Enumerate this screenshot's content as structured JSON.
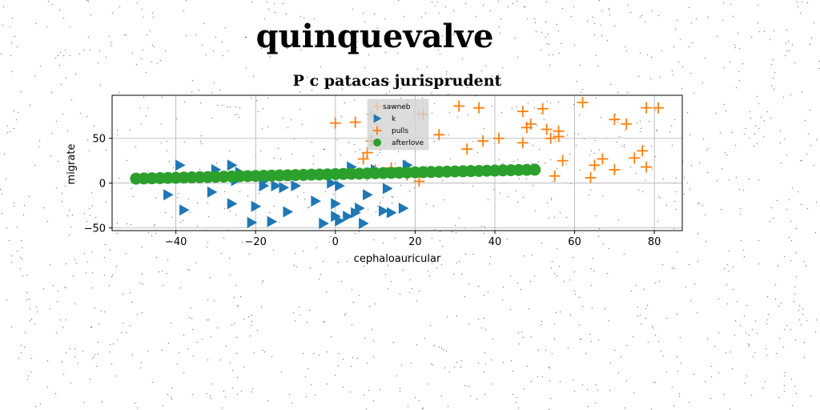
{
  "page": {
    "suptitle": "quinquevalve"
  },
  "chart_data": {
    "type": "scatter",
    "title": "P c patacas jurisprudent",
    "xlabel": "cephaloauricular",
    "ylabel": "migrate",
    "xlim": [
      -56,
      87
    ],
    "ylim": [
      -53,
      98
    ],
    "xticks": [
      -40,
      -20,
      0,
      20,
      40,
      60,
      80
    ],
    "yticks": [
      -50,
      0,
      50
    ],
    "grid": true,
    "legend_position": "top-center",
    "legend": [
      "sawneb",
      "k",
      "pulls",
      "afterlove"
    ],
    "series": [
      {
        "name": "sawneb",
        "marker": "plus",
        "color": "#e8c4a8",
        "points": [
          [
            9,
            77
          ],
          [
            21,
            77
          ]
        ]
      },
      {
        "name": "k",
        "marker": "triangle-right",
        "color": "#1f77b4",
        "points": [
          [
            -39,
            20
          ],
          [
            -30,
            15
          ],
          [
            -26,
            20
          ],
          [
            -24,
            12
          ],
          [
            -25,
            3
          ],
          [
            -18,
            5
          ],
          [
            -17,
            5
          ],
          [
            -42,
            -13
          ],
          [
            -38,
            -30
          ],
          [
            -31,
            -10
          ],
          [
            -26,
            -23
          ],
          [
            -20,
            -26
          ],
          [
            -21,
            -44
          ],
          [
            -18,
            -3
          ],
          [
            -15,
            -3
          ],
          [
            -13,
            -5
          ],
          [
            -10,
            -3
          ],
          [
            -12,
            -32
          ],
          [
            -16,
            -43
          ],
          [
            -5,
            -20
          ],
          [
            -3,
            -45
          ],
          [
            -1,
            0
          ],
          [
            0,
            -23
          ],
          [
            0,
            -37
          ],
          [
            1,
            -3
          ],
          [
            1,
            -42
          ],
          [
            3,
            -37
          ],
          [
            5,
            -33
          ],
          [
            6,
            -28
          ],
          [
            7,
            -45
          ],
          [
            8,
            -13
          ],
          [
            12,
            -31
          ],
          [
            13,
            -6
          ],
          [
            14,
            -33
          ],
          [
            17,
            -28
          ],
          [
            18,
            20
          ],
          [
            4,
            18
          ],
          [
            10,
            15
          ]
        ]
      },
      {
        "name": "pulls",
        "marker": "plus",
        "color": "#ff7f0e",
        "points": [
          [
            0,
            67
          ],
          [
            5,
            68
          ],
          [
            7,
            27
          ],
          [
            8,
            34
          ],
          [
            9,
            47
          ],
          [
            10,
            15
          ],
          [
            14,
            17
          ],
          [
            18,
            9
          ],
          [
            21,
            2
          ],
          [
            22,
            77
          ],
          [
            26,
            54
          ],
          [
            31,
            86
          ],
          [
            33,
            38
          ],
          [
            36,
            84
          ],
          [
            37,
            47
          ],
          [
            41,
            50
          ],
          [
            47,
            45
          ],
          [
            47,
            80
          ],
          [
            48,
            62
          ],
          [
            49,
            66
          ],
          [
            52,
            83
          ],
          [
            53,
            60
          ],
          [
            54,
            50
          ],
          [
            55,
            8
          ],
          [
            56,
            52
          ],
          [
            56,
            58
          ],
          [
            57,
            25
          ],
          [
            62,
            90
          ],
          [
            64,
            6
          ],
          [
            65,
            20
          ],
          [
            67,
            27
          ],
          [
            70,
            71
          ],
          [
            70,
            15
          ],
          [
            73,
            66
          ],
          [
            75,
            28
          ],
          [
            77,
            36
          ],
          [
            78,
            18
          ],
          [
            78,
            84
          ],
          [
            81,
            84
          ]
        ]
      },
      {
        "name": "afterlove",
        "marker": "circle",
        "color": "#2ca02c",
        "line_from": [
          -50,
          5
        ],
        "line_to": [
          50,
          15
        ],
        "count": 51
      }
    ]
  },
  "colors": {
    "grid": "#b0b0b0",
    "legend_bg": "#d3d3d3"
  }
}
